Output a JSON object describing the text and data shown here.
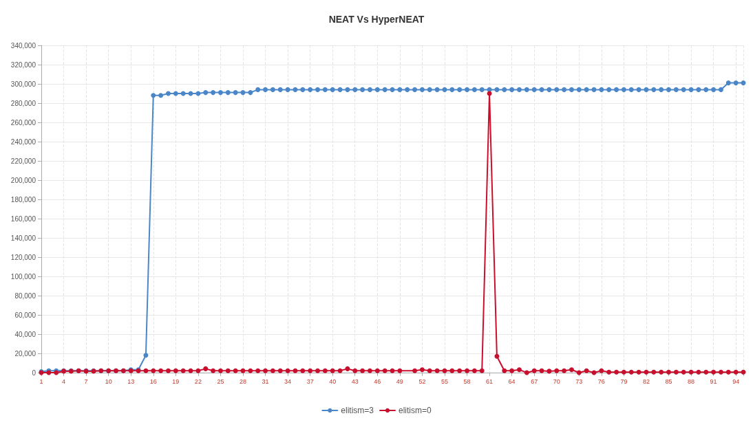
{
  "chart_data": {
    "type": "line",
    "title": "NEAT Vs HyperNEAT",
    "categories": [
      "1",
      null,
      null,
      "4",
      null,
      null,
      "7",
      null,
      null,
      "10",
      null,
      null,
      "13",
      null,
      null,
      "16",
      null,
      null,
      "19",
      null,
      null,
      "22",
      null,
      null,
      "25",
      null,
      null,
      "28",
      null,
      null,
      "31",
      null,
      null,
      "34",
      null,
      null,
      "37",
      null,
      null,
      "40",
      null,
      null,
      "43",
      null,
      null,
      "46",
      null,
      null,
      "49",
      null,
      null,
      "52",
      null,
      null,
      "55",
      null,
      null,
      "58",
      null,
      null,
      "61",
      null,
      null,
      "64",
      null,
      null,
      "67",
      null,
      null,
      "70",
      null,
      null,
      "73",
      null,
      null,
      "76",
      null,
      null,
      "79",
      null,
      null,
      "82",
      null,
      null,
      "85",
      null,
      null,
      "88",
      null,
      null,
      "91",
      null,
      null,
      "94",
      null
    ],
    "series": [
      {
        "name": "elitism=3",
        "color": "#4a86c8",
        "values": [
          1000,
          2000,
          2000,
          2000,
          2000,
          2000,
          2000,
          2000,
          2000,
          2000,
          2000,
          2000,
          3000,
          3000,
          18000,
          288000,
          288000,
          290000,
          290000,
          290000,
          290000,
          290000,
          291000,
          291000,
          291000,
          291000,
          291000,
          291000,
          291000,
          294000,
          294000,
          294000,
          294000,
          294000,
          294000,
          294000,
          294000,
          294000,
          294000,
          294000,
          294000,
          294000,
          294000,
          294000,
          294000,
          294000,
          294000,
          294000,
          294000,
          294000,
          294000,
          294000,
          294000,
          294000,
          294000,
          294000,
          294000,
          294000,
          294000,
          294000,
          294000,
          294000,
          294000,
          294000,
          294000,
          294000,
          294000,
          294000,
          294000,
          294000,
          294000,
          294000,
          294000,
          294000,
          294000,
          294000,
          294000,
          294000,
          294000,
          294000,
          294000,
          294000,
          294000,
          294000,
          294000,
          294000,
          294000,
          294000,
          294000,
          294000,
          294000,
          294000,
          301000,
          301000,
          301000
        ]
      },
      {
        "name": "elitism=0",
        "color": "#c8102e",
        "values": [
          0,
          0,
          0,
          1500,
          1500,
          2000,
          1500,
          1500,
          2000,
          2000,
          2000,
          2000,
          2000,
          2000,
          2000,
          2000,
          2000,
          2000,
          2000,
          2000,
          2000,
          2000,
          4000,
          2000,
          2000,
          2000,
          2000,
          2000,
          2000,
          2000,
          2000,
          2000,
          2000,
          2000,
          2000,
          2000,
          2000,
          2000,
          2000,
          2000,
          2000,
          4000,
          2000,
          2000,
          2000,
          2000,
          2000,
          2000,
          2000,
          null,
          2000,
          3000,
          2000,
          2000,
          2000,
          2000,
          2000,
          2000,
          2000,
          2000,
          290000,
          17000,
          2000,
          2000,
          3000,
          0,
          2000,
          2000,
          1500,
          2000,
          2000,
          3000,
          0,
          2000,
          0,
          2000,
          500,
          500,
          500,
          500,
          500,
          500,
          500,
          500,
          500,
          500,
          500,
          500,
          500,
          500,
          500,
          500,
          500,
          500,
          500
        ]
      }
    ],
    "ylim": [
      0,
      340000
    ],
    "yticks": [
      0,
      {
        "value": 20000,
        "label": "20,000"
      },
      {
        "value": 40000,
        "label": "40,000"
      },
      {
        "value": 60000,
        "label": "60,000"
      },
      {
        "value": 80000,
        "label": "80,000"
      },
      {
        "value": 100000,
        "label": "100,000"
      },
      {
        "value": 120000,
        "label": "120,000"
      },
      {
        "value": 140000,
        "label": "140,000"
      },
      {
        "value": 160000,
        "label": "160,000"
      },
      {
        "value": 180000,
        "label": "180,000"
      },
      {
        "value": 200000,
        "label": "200,000"
      },
      {
        "value": 220000,
        "label": "220,000"
      },
      {
        "value": 240000,
        "label": "240,000"
      },
      {
        "value": 260000,
        "label": "260,000"
      },
      {
        "value": 280000,
        "label": "280,000"
      },
      {
        "value": 300000,
        "label": "300,000"
      },
      {
        "value": 320000,
        "label": "320,000"
      },
      {
        "value": 340000,
        "label": "340,000"
      }
    ],
    "grid": true,
    "legend": "bottom",
    "marker": "circle",
    "line_style": "solid"
  }
}
